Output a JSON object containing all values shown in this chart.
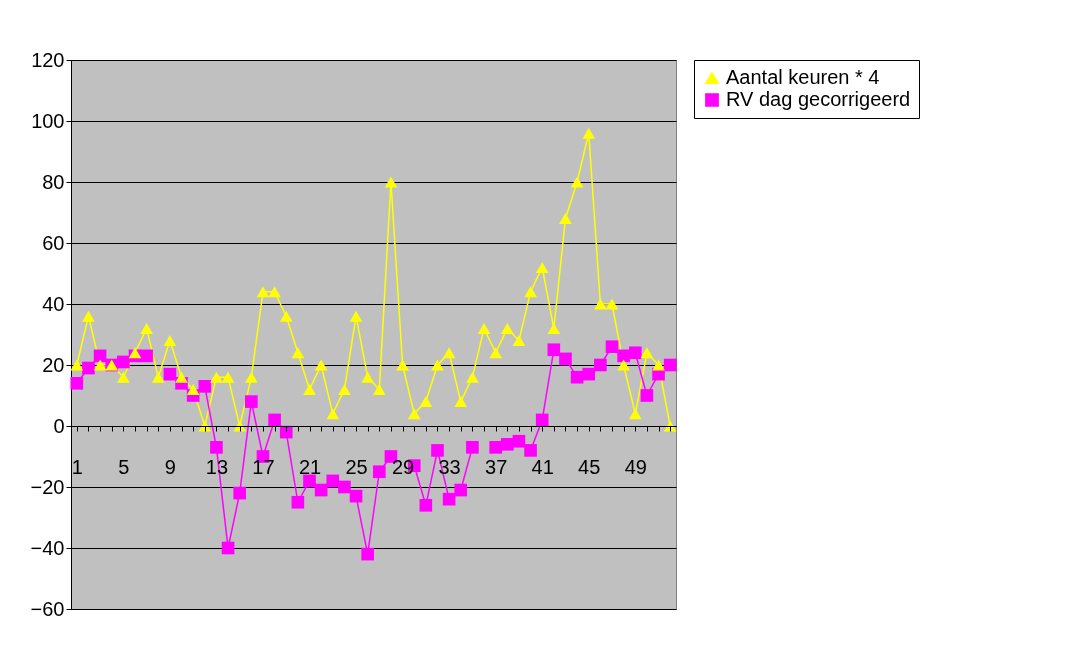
{
  "chart_data": {
    "type": "line",
    "categories": [
      "1",
      null,
      null,
      null,
      "5",
      null,
      null,
      null,
      "9",
      null,
      null,
      null,
      "13",
      null,
      null,
      null,
      "17",
      null,
      null,
      null,
      "21",
      null,
      null,
      null,
      "25",
      null,
      null,
      null,
      "29",
      null,
      null,
      null,
      "33",
      null,
      null,
      null,
      "37",
      null,
      null,
      null,
      "41",
      null,
      null,
      null,
      "45",
      null,
      null,
      null,
      "49",
      null,
      null,
      null
    ],
    "series": [
      {
        "name": "Aantal keuren * 4",
        "color": "#ffff00",
        "marker": "triangle",
        "values": [
          20,
          36,
          20,
          20,
          16,
          24,
          32,
          16,
          28,
          16,
          12,
          0,
          16,
          16,
          0,
          16,
          44,
          44,
          36,
          24,
          12,
          20,
          4,
          12,
          36,
          16,
          12,
          80,
          20,
          4,
          8,
          20,
          24,
          8,
          16,
          32,
          24,
          32,
          28,
          44,
          52,
          32,
          68,
          80,
          96,
          40,
          40,
          20,
          4,
          24,
          20,
          0
        ]
      },
      {
        "name": "RV dag gecorrigeerd",
        "color": "#ff00ff",
        "marker": "square",
        "values": [
          14,
          19,
          23,
          20,
          21,
          23,
          23,
          null,
          17,
          14,
          10,
          13,
          -7,
          -40,
          -22,
          8,
          -10,
          2,
          -2,
          -25,
          -18,
          -21,
          -18,
          -20,
          -23,
          -42,
          -15,
          -10,
          null,
          -13,
          -26,
          -8,
          -24,
          -21,
          -7,
          null,
          -7,
          -6,
          -5,
          -8,
          2,
          25,
          22,
          16,
          17,
          20,
          26,
          23,
          24,
          10,
          17,
          20
        ]
      }
    ],
    "ylim": [
      -60,
      120
    ],
    "yticks": [
      -60,
      -40,
      -20,
      0,
      20,
      40,
      60,
      80,
      100,
      120
    ],
    "grid": "y",
    "legend": "right",
    "line_style": "solid"
  }
}
